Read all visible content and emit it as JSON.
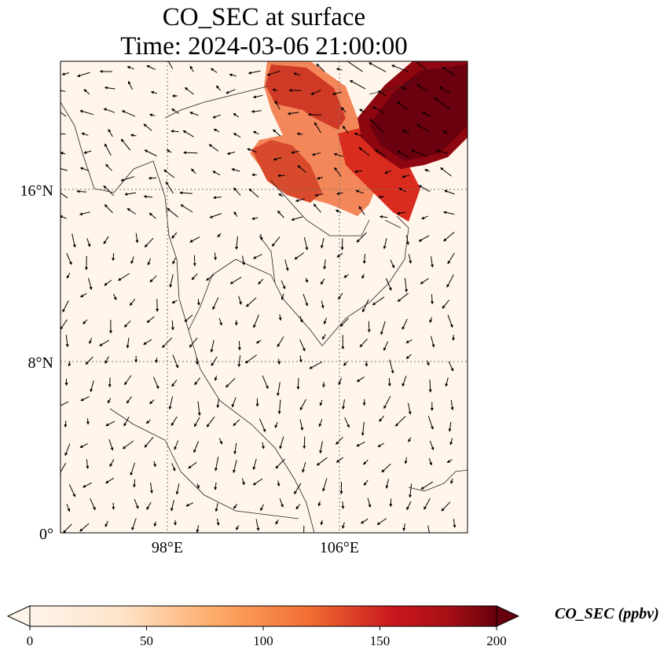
{
  "title": {
    "line1": "CO_SEC at surface",
    "line2": "Time: 2024-03-06 21:00:00"
  },
  "map": {
    "lat_ticks": [
      "16°N",
      "8°N",
      "0°"
    ],
    "lon_ticks": [
      "98°E",
      "106°E"
    ],
    "gridlines": "dotted",
    "background_color": "#fff5eb",
    "vector_field": "wind arrows"
  },
  "colorbar": {
    "label": "CO_SEC (ppbv)",
    "ticks": [
      "0",
      "50",
      "100",
      "150",
      "200"
    ],
    "min": 0,
    "max": 200,
    "extend": "both",
    "colormap": [
      "#fff5eb",
      "#fdd1a2",
      "#fd9243",
      "#e0431f",
      "#a50f15",
      "#67000d"
    ]
  }
}
